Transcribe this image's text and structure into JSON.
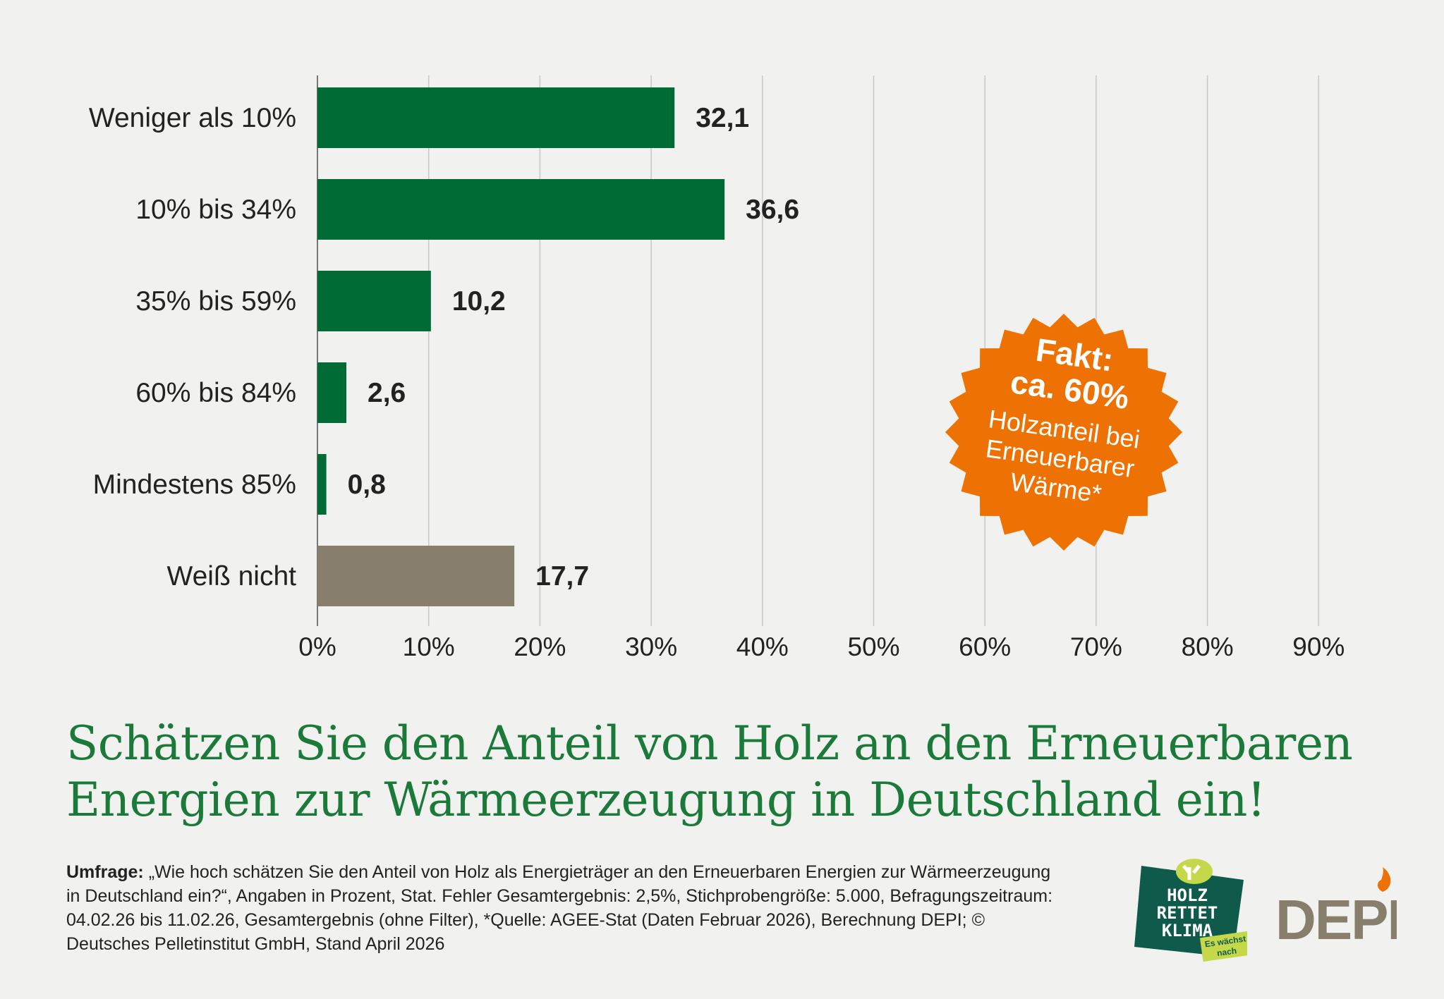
{
  "chart_data": {
    "type": "bar",
    "orientation": "horizontal",
    "categories": [
      "Weniger als 10%",
      "10% bis 34%",
      "35% bis 59%",
      "60% bis 84%",
      "Mindestens 85%",
      "Weiß nicht"
    ],
    "values": [
      32.1,
      36.6,
      10.2,
      2.6,
      0.8,
      17.7
    ],
    "data_labels": [
      "32,1",
      "36,6",
      "10,2",
      "2,6",
      "0,8",
      "17,7"
    ],
    "bar_colors": [
      "#006b35",
      "#006b35",
      "#006b35",
      "#006b35",
      "#006b35",
      "#877f6c"
    ],
    "xlim": [
      0,
      90
    ],
    "x_ticks": [
      0,
      10,
      20,
      30,
      40,
      50,
      60,
      70,
      80,
      90
    ],
    "x_tick_labels": [
      "0%",
      "10%",
      "20%",
      "30%",
      "40%",
      "50%",
      "60%",
      "70%",
      "80%",
      "90%"
    ],
    "grid": "vertical",
    "title": "Schätzen Sie den Anteil von Holz an den Erneuerbaren Energien zur Wärmeerzeugung in Deutschland ein!"
  },
  "title_lines": [
    "Schätzen Sie den Anteil von Holz an den Erneuerbaren",
    "Energien zur Wärmeerzeugung in Deutschland ein!"
  ],
  "badge": {
    "line1": "Fakt:",
    "line2": "ca. 60%",
    "line3": "Holzanteil bei",
    "line4": "Erneuerbarer",
    "line5": "Wärme*",
    "color": "#ee7203"
  },
  "footnote": {
    "label": "Umfrage:",
    "text": " „Wie hoch schätzen Sie den Anteil von Holz als Energieträger an den Erneuerbaren Energien zur Wärmeerzeugung in Deutschland ein?“, Angaben in Prozent, Stat. Fehler Gesamtergebnis: 2,5%, Stichprobengröße: 5.000, Befragungszeitraum: 04.02.26 bis 11.02.26, Gesamtergebnis (ohne Filter), *Quelle: AGEE-Stat (Daten Februar 2026), Berechnung DEPI; © Deutsches Pelletinstitut GmbH, Stand April 2026"
  },
  "logos": {
    "holz": {
      "line1": "HOLZ",
      "line2": "RETTET",
      "line3": "KLIMA",
      "tag1": "Es wächst",
      "tag2": "nach"
    },
    "depi": "DEPI"
  }
}
